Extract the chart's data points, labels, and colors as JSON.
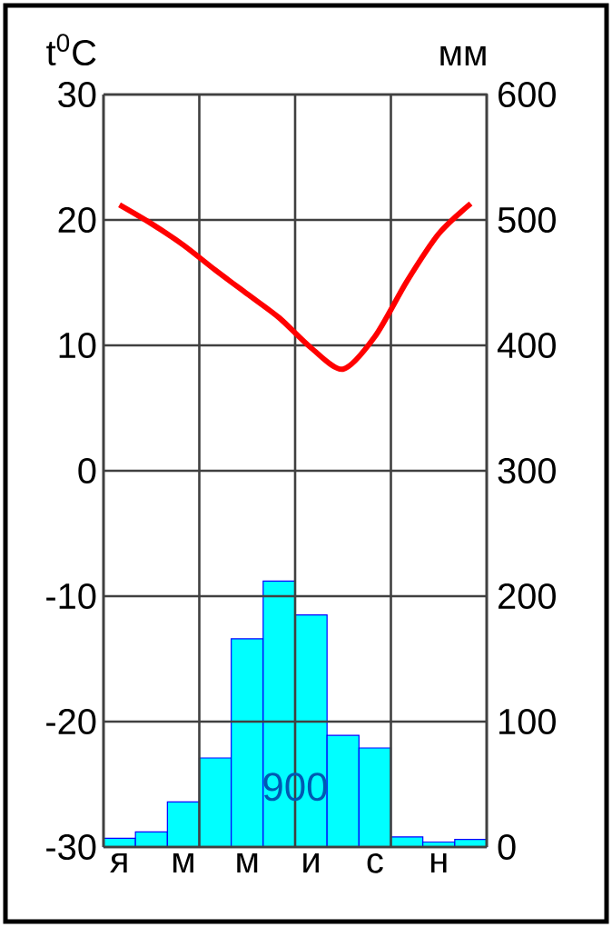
{
  "chart_data": {
    "type": "bar",
    "categories": [
      "я",
      null,
      "м",
      null,
      "м",
      null,
      "и",
      null,
      "с",
      null,
      "н",
      null
    ],
    "series": [
      {
        "axis": "y2",
        "color": "#00ffff",
        "values": [
          7,
          12,
          36,
          71,
          166,
          212,
          185,
          89,
          79,
          8,
          4,
          6
        ]
      },
      {
        "type": "line",
        "color": "#ff0000",
        "values": [
          21.2,
          19.7,
          18.0,
          16.0,
          14.1,
          12.2,
          9.8,
          8.1,
          10.7,
          15.1,
          18.9,
          21.3
        ]
      }
    ],
    "ylabel": "t$^{0}$C",
    "y2label": "мм",
    "ylim": [
      -30,
      30
    ],
    "yticks": [
      -30,
      -20,
      -10,
      0,
      10,
      20,
      30
    ],
    "y2lim": [
      0,
      600
    ],
    "y2ticks": [
      0,
      100,
      200,
      300,
      400,
      500,
      600
    ],
    "grid": true,
    "annotations": [
      "900"
    ]
  }
}
